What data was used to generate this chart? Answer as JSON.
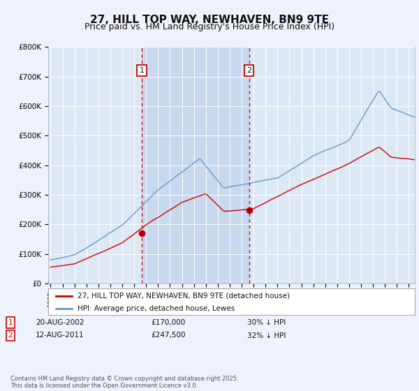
{
  "title": "27, HILL TOP WAY, NEWHAVEN, BN9 9TE",
  "subtitle": "Price paid vs. HM Land Registry's House Price Index (HPI)",
  "title_fontsize": 11,
  "subtitle_fontsize": 9,
  "background_color": "#eef2fa",
  "plot_bg_color": "#dde8f5",
  "shade_color": "#c8d8ee",
  "ylim": [
    0,
    800000
  ],
  "yticks": [
    0,
    100000,
    200000,
    300000,
    400000,
    500000,
    600000,
    700000,
    800000
  ],
  "ytick_labels": [
    "£0",
    "£100K",
    "£200K",
    "£300K",
    "£400K",
    "£500K",
    "£600K",
    "£700K",
    "£800K"
  ],
  "legend_entries": [
    "27, HILL TOP WAY, NEWHAVEN, BN9 9TE (detached house)",
    "HPI: Average price, detached house, Lewes"
  ],
  "legend_colors": [
    "#cc0000",
    "#6699cc"
  ],
  "annotation1": {
    "label": "1",
    "date": "20-AUG-2002",
    "price": "£170,000",
    "hpi": "30% ↓ HPI",
    "x": 2002.63
  },
  "annotation2": {
    "label": "2",
    "date": "12-AUG-2011",
    "price": "£247,500",
    "hpi": "32% ↓ HPI",
    "x": 2011.62
  },
  "footer": "Contains HM Land Registry data © Crown copyright and database right 2025.\nThis data is licensed under the Open Government Licence v3.0.",
  "hpi_color": "#6699cc",
  "price_color": "#cc0000",
  "vline_color": "#cc0000",
  "grid_color": "#ffffff",
  "sale1_price": 170000,
  "sale2_price": 247500,
  "xlim": [
    1994.8,
    2025.5
  ],
  "xstart": 1995,
  "xend": 2025
}
